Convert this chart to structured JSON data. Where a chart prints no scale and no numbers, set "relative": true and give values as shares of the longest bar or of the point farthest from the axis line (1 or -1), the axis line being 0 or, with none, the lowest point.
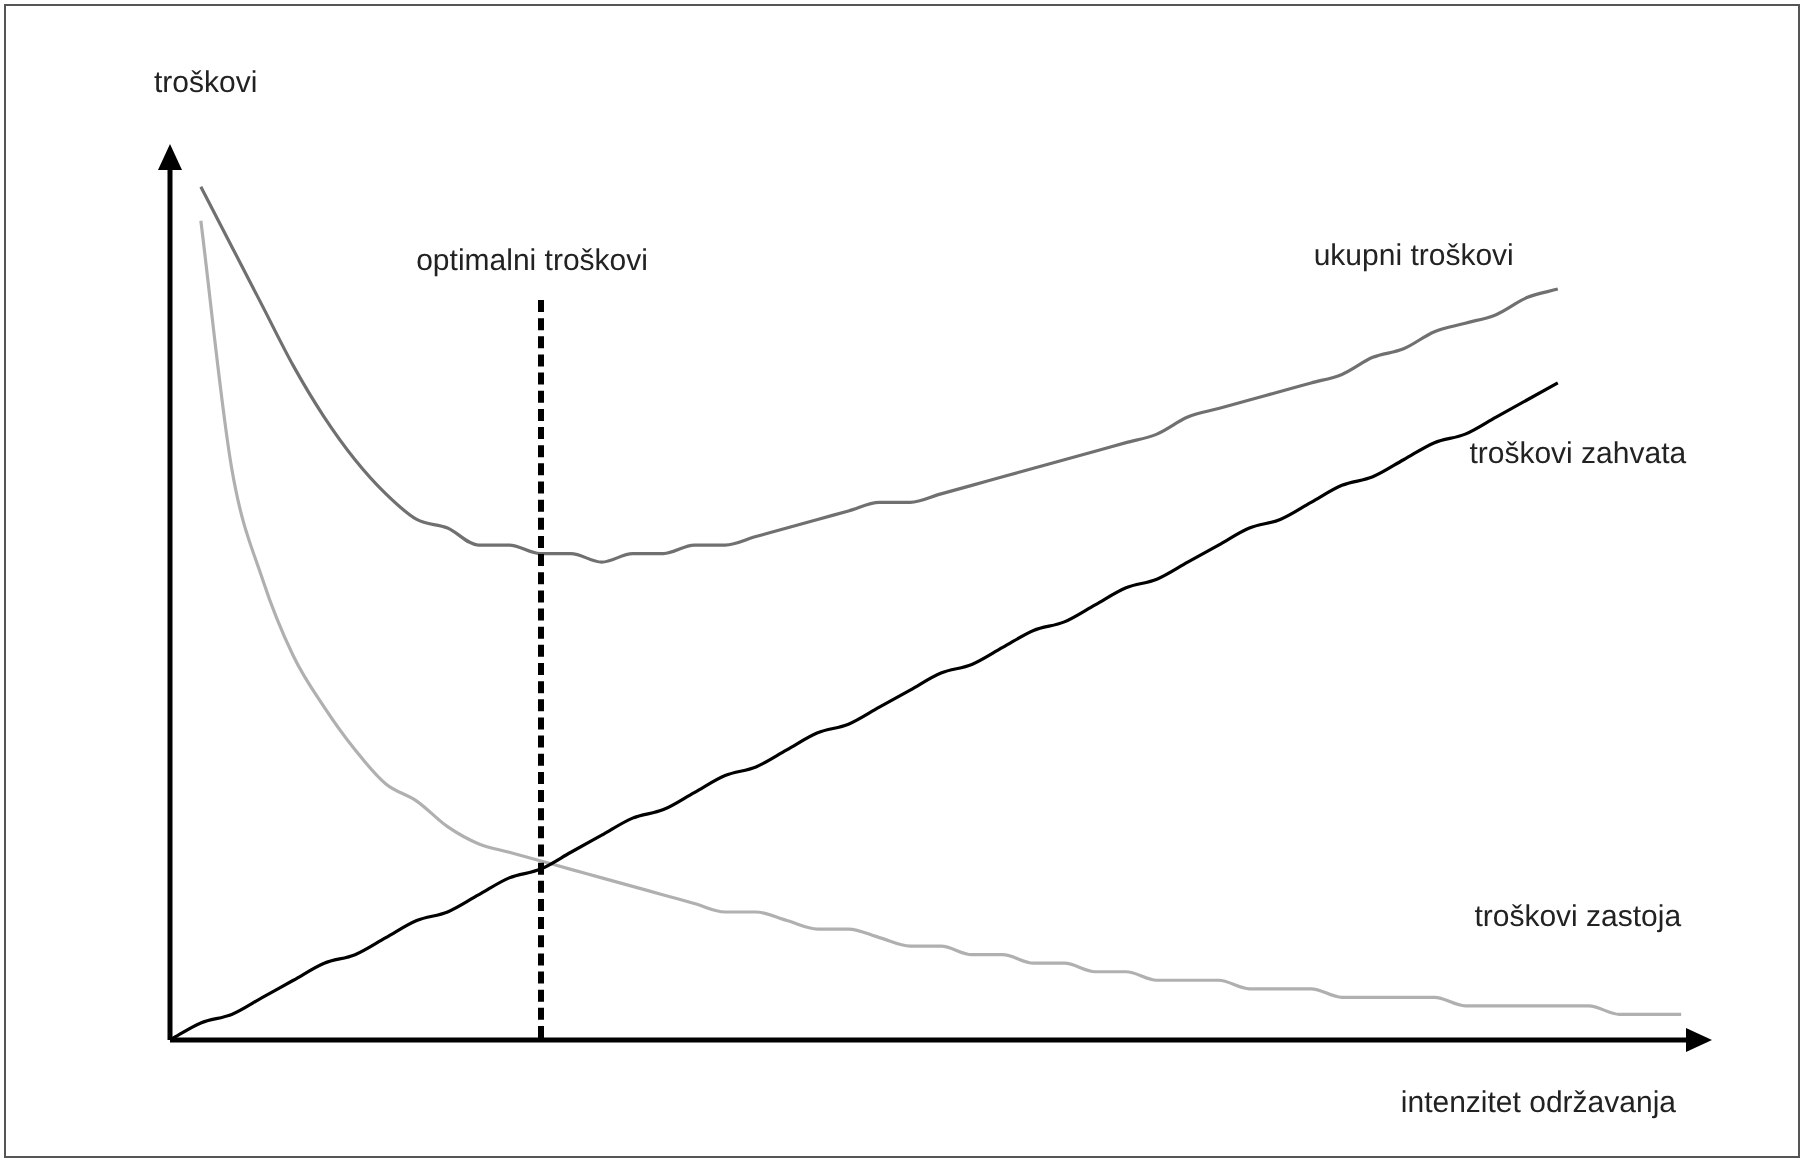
{
  "chart_data": {
    "type": "line",
    "relative": true,
    "xlabel": "intenzitet održavanja",
    "ylabel": "troškovi",
    "categories": [
      null,
      null,
      null,
      null,
      null,
      null,
      null,
      null,
      null,
      null,
      null,
      null,
      null,
      null,
      null,
      null,
      null,
      null,
      null,
      null,
      null,
      null,
      null,
      null,
      null,
      null,
      null,
      null,
      null,
      null,
      null,
      null,
      null,
      null,
      null,
      null,
      null,
      null,
      null,
      null,
      null,
      null,
      null,
      null,
      null,
      null,
      null,
      null,
      null,
      null,
      null
    ],
    "series": [
      {
        "name": "ukupni troškovi",
        "color": "#707070",
        "values": [
          null,
          1.0,
          0.93,
          0.86,
          0.79,
          0.73,
          0.68,
          0.64,
          0.61,
          0.6,
          0.58,
          0.58,
          0.57,
          0.57,
          0.56,
          0.57,
          0.57,
          0.58,
          0.58,
          0.59,
          0.6,
          0.61,
          0.62,
          0.63,
          0.63,
          0.64,
          0.65,
          0.66,
          0.67,
          0.68,
          0.69,
          0.7,
          0.71,
          0.73,
          0.74,
          0.75,
          0.76,
          0.77,
          0.78,
          0.8,
          0.81,
          0.83,
          0.84,
          0.85,
          0.87,
          0.88,
          null,
          null,
          null,
          null,
          null
        ]
      },
      {
        "name": "troškovi zahvata",
        "color": "#000000",
        "values": [
          0,
          0.02,
          0.03,
          0.05,
          0.07,
          0.09,
          0.1,
          0.12,
          0.14,
          0.15,
          0.17,
          0.19,
          0.2,
          0.22,
          0.24,
          0.26,
          0.27,
          0.29,
          0.31,
          0.32,
          0.34,
          0.36,
          0.37,
          0.39,
          0.41,
          0.43,
          0.44,
          0.46,
          0.48,
          0.49,
          0.51,
          0.53,
          0.54,
          0.56,
          0.58,
          0.6,
          0.61,
          0.63,
          0.65,
          0.66,
          0.68,
          0.7,
          0.71,
          0.73,
          0.75,
          0.77,
          null,
          null,
          null,
          null,
          null
        ]
      },
      {
        "name": "troškovi zastoja",
        "color": "#b0b0b0",
        "values": [
          null,
          0.96,
          0.67,
          0.54,
          0.45,
          0.39,
          0.34,
          0.3,
          0.28,
          0.25,
          0.23,
          0.22,
          0.21,
          0.2,
          0.19,
          0.18,
          0.17,
          0.16,
          0.15,
          0.15,
          0.14,
          0.13,
          0.13,
          0.12,
          0.11,
          0.11,
          0.1,
          0.1,
          0.09,
          0.09,
          0.08,
          0.08,
          0.07,
          0.07,
          0.07,
          0.06,
          0.06,
          0.06,
          0.05,
          0.05,
          0.05,
          0.05,
          0.04,
          0.04,
          0.04,
          0.04,
          0.04,
          0.03,
          0.03,
          0.03,
          null
        ]
      }
    ],
    "annotations": [
      "optimalni troškovi"
    ]
  }
}
